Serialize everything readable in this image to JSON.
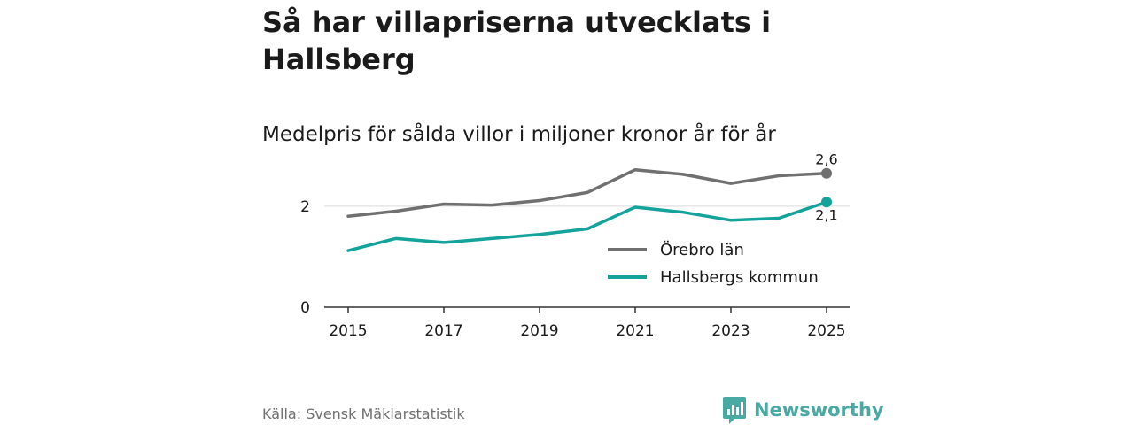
{
  "header": {
    "title": "Så har villapriserna utvecklats i Hallsberg",
    "subtitle": "Medelpris för sålda villor i miljoner kronor år för år"
  },
  "footer": {
    "source": "Källa: Svensk Mäklarstatistik",
    "brand": "Newsworthy"
  },
  "colors": {
    "orebro": "#707070",
    "hallsberg": "#13a39a",
    "brand": "#49a9a3"
  },
  "chart_data": {
    "type": "line",
    "title": "Så har villapriserna utvecklats i Hallsberg",
    "subtitle": "Medelpris för sålda villor i miljoner kronor år för år",
    "xlabel": "",
    "ylabel": "",
    "x": [
      2015,
      2016,
      2017,
      2018,
      2019,
      2020,
      2021,
      2022,
      2023,
      2024,
      2025
    ],
    "xticks": [
      "2015",
      "2017",
      "2019",
      "2021",
      "2023",
      "2025"
    ],
    "xlim": [
      2014.5,
      2025.5
    ],
    "ylim": [
      0,
      2.75
    ],
    "yticks": [
      {
        "value": 0,
        "label": "0"
      },
      {
        "value": 2,
        "label": "2"
      }
    ],
    "grid": "horizontal",
    "legend_position": "inside-right",
    "series": [
      {
        "name": "Örebro län",
        "color": "#707070",
        "values": [
          1.8,
          1.9,
          2.04,
          2.02,
          2.11,
          2.27,
          2.72,
          2.63,
          2.45,
          2.6,
          2.65
        ],
        "end_label": "2,6"
      },
      {
        "name": "Hallsbergs kommun",
        "color": "#13a39a",
        "values": [
          1.12,
          1.36,
          1.28,
          1.36,
          1.44,
          1.55,
          1.98,
          1.88,
          1.72,
          1.76,
          2.08
        ],
        "end_label": "2,1"
      }
    ]
  }
}
